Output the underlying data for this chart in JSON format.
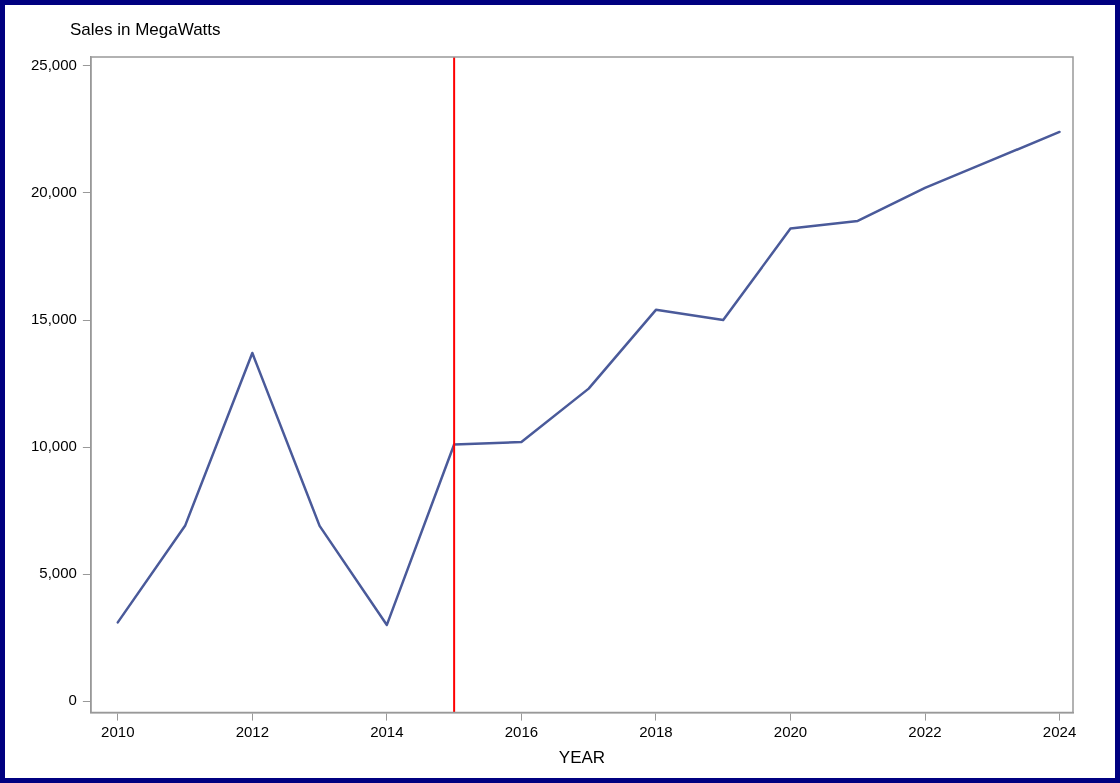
{
  "chart_data": {
    "type": "line",
    "ylabel": "Sales in MegaWatts",
    "xlabel": "YEAR",
    "x": [
      2010,
      2011,
      2012,
      2013,
      2014,
      2015,
      2016,
      2017,
      2018,
      2019,
      2020,
      2021,
      2022,
      2023,
      2024
    ],
    "series": [
      {
        "color": "#4a5a9a",
        "values": [
          3100,
          6900,
          13700,
          6900,
          3000,
          10100,
          10200,
          12300,
          15400,
          15000,
          18600,
          18900,
          20200,
          21300,
          22400
        ]
      }
    ],
    "xlim": [
      2009.6,
      2024.2
    ],
    "xticks": [
      2010,
      2012,
      2014,
      2016,
      2018,
      2020,
      2022,
      2024
    ],
    "ylim": [
      -450,
      25350
    ],
    "yticks": [
      0,
      {
        "value": 5000,
        "label": "5,000"
      },
      {
        "value": 10000,
        "label": "10,000"
      },
      {
        "value": 15000,
        "label": "15,000"
      },
      {
        "value": 20000,
        "label": "20,000"
      },
      {
        "value": 25000,
        "label": "25,000"
      }
    ],
    "ref_lines": [
      {
        "axis": "x",
        "value": 2015,
        "color": "#ff0000"
      }
    ],
    "grid": false,
    "legend": false,
    "marker": "none",
    "line_style": "solid"
  }
}
